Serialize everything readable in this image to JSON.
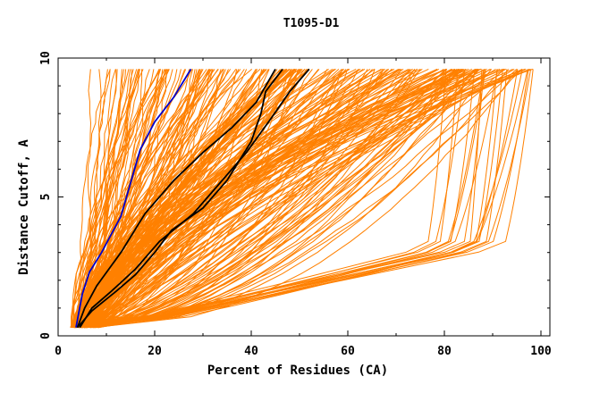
{
  "chart_data": {
    "type": "line",
    "title": "T1095-D1",
    "xlabel": "Percent of Residues (CA)",
    "ylabel": "Distance Cutoff, A",
    "xlim": [
      0,
      100
    ],
    "ylim": [
      0,
      10
    ],
    "x_ticks": [
      "0",
      "20",
      "40",
      "60",
      "80",
      "100"
    ],
    "y_ticks": [
      "0",
      "5",
      "10"
    ],
    "grid": false,
    "colors": {
      "background_models": "#ff8000",
      "highlight_blue": "#0000cc",
      "highlight_black": "#000000"
    },
    "series": [
      {
        "color": "#0000cc",
        "x": [
          3.7,
          5.0,
          6.5,
          9.0,
          13.0,
          17.0,
          20.0,
          24.0,
          27.5
        ],
        "y": [
          0.3,
          1.5,
          2.3,
          3.0,
          4.3,
          6.7,
          7.7,
          8.6,
          9.6
        ]
      },
      {
        "color": "#000000",
        "x": [
          4.0,
          5.5,
          8.0,
          13.0,
          18.0,
          24.0,
          30.0,
          36.0,
          41.0,
          45.0
        ],
        "y": [
          0.3,
          1.0,
          1.8,
          3.0,
          4.4,
          5.6,
          6.6,
          7.5,
          8.4,
          9.6
        ]
      },
      {
        "color": "#000000",
        "x": [
          4.5,
          7.0,
          11.0,
          16.0,
          21.0,
          28.0,
          33.0,
          39.0,
          44.0,
          48.0,
          52.0
        ],
        "y": [
          0.3,
          1.0,
          1.6,
          2.4,
          3.4,
          4.4,
          5.4,
          6.6,
          7.8,
          8.8,
          9.6
        ]
      },
      {
        "color": "#000000",
        "x": [
          4.0,
          7.0,
          12.0,
          16.0,
          20.0,
          23.5,
          30.0,
          35.0,
          40.0,
          42.0,
          43.0,
          46.5
        ],
        "y": [
          0.3,
          0.9,
          1.6,
          2.2,
          3.0,
          3.8,
          4.6,
          5.6,
          7.0,
          8.0,
          8.8,
          9.6
        ]
      }
    ]
  }
}
